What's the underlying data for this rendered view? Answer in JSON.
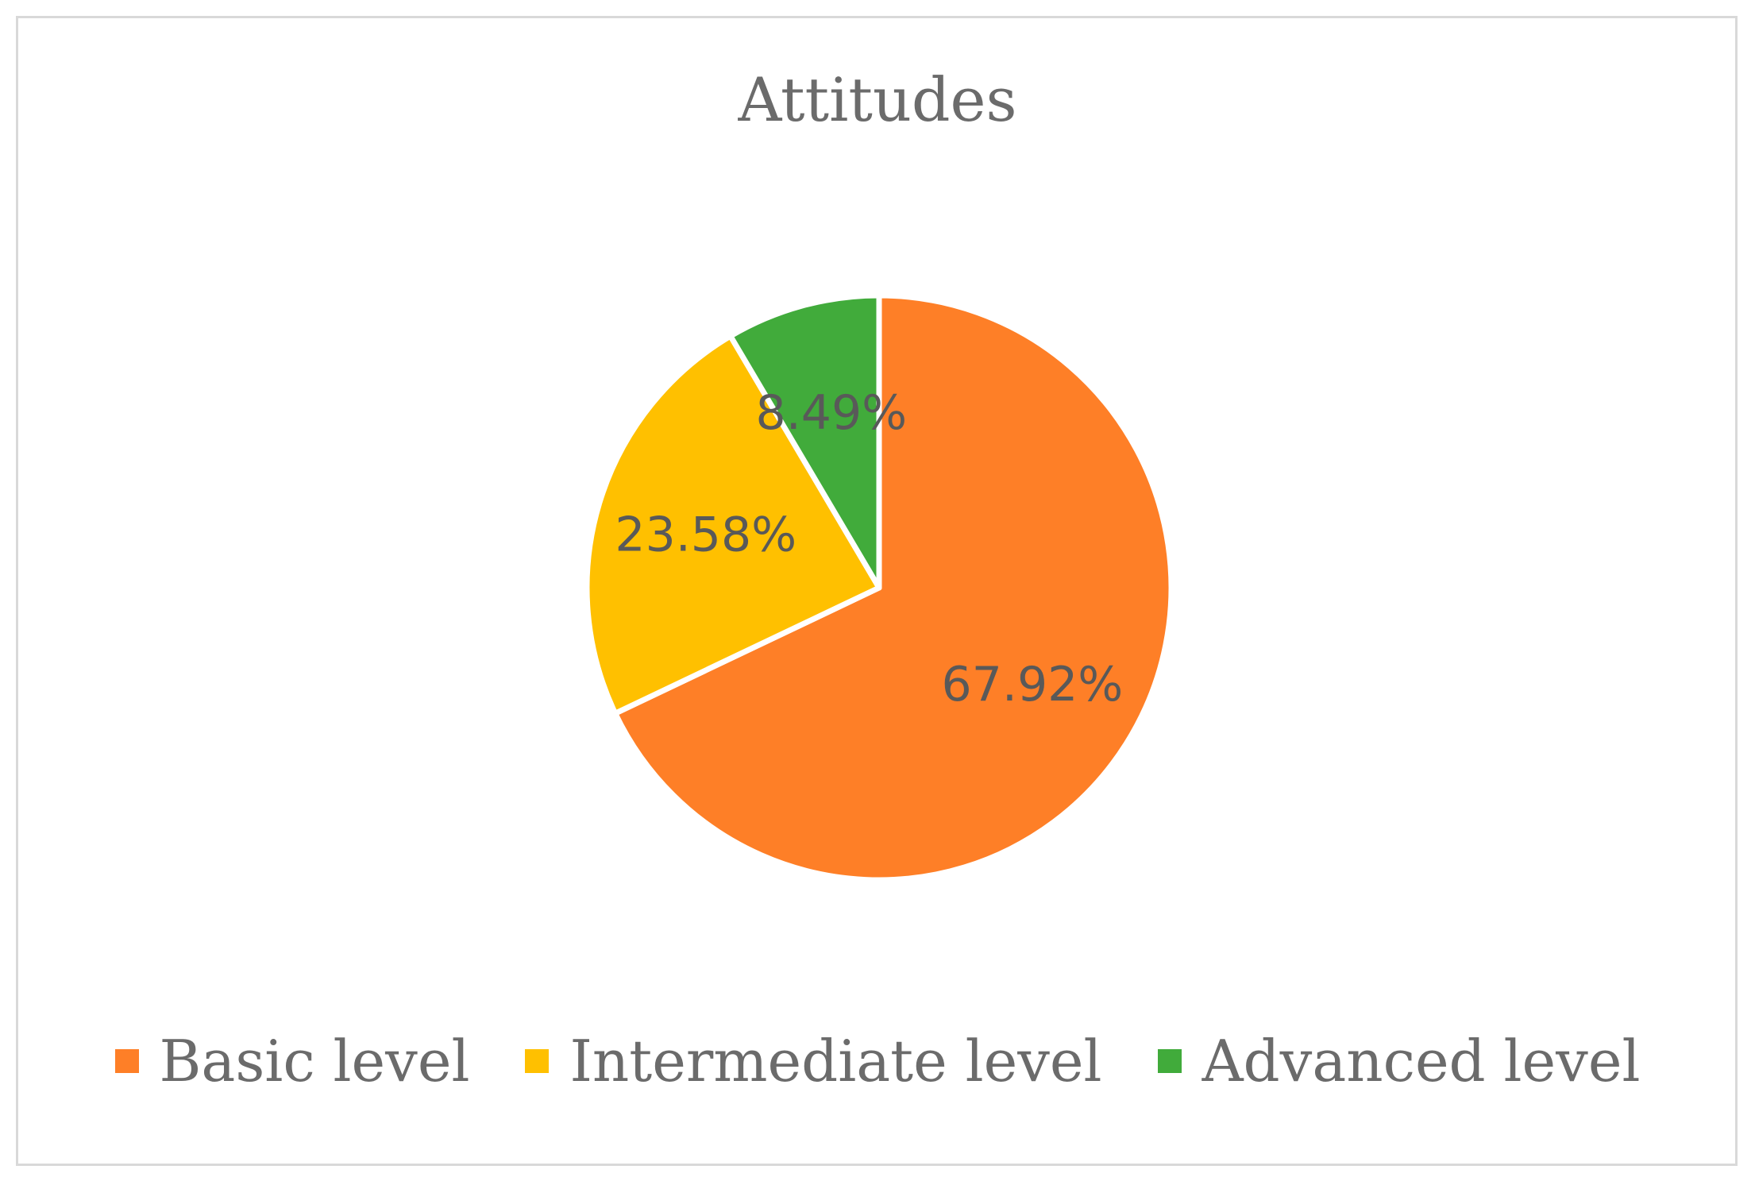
{
  "chart_data": {
    "type": "pie",
    "title": "Attitudes",
    "categories": [
      "Basic level",
      "Intermediate level",
      "Advanced level"
    ],
    "values": [
      67.92,
      23.58,
      8.49
    ],
    "labels": [
      "67.92%",
      "23.58%",
      "8.49%"
    ],
    "colors": [
      "#fe7f27",
      "#ffc000",
      "#41ab3b"
    ],
    "legend_position": "bottom",
    "start_angle": "12 o'clock, clockwise"
  }
}
